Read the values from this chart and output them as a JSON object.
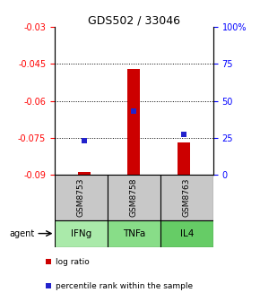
{
  "title": "GDS502 / 33046",
  "samples": [
    "GSM8753",
    "GSM8758",
    "GSM8763"
  ],
  "agents": [
    "IFNg",
    "TNFa",
    "IL4"
  ],
  "log_ratios": [
    -0.089,
    -0.047,
    -0.077
  ],
  "log_ratio_base": -0.09,
  "percentile_ranks": [
    23,
    43,
    27
  ],
  "ylim_left": [
    -0.09,
    -0.03
  ],
  "ylim_right": [
    0,
    100
  ],
  "yticks_left": [
    -0.09,
    -0.075,
    -0.06,
    -0.045,
    -0.03
  ],
  "yticks_right": [
    0,
    25,
    50,
    75,
    100
  ],
  "ytick_labels_right": [
    "0",
    "25",
    "50",
    "75",
    "100%"
  ],
  "bar_color": "#cc0000",
  "dot_color": "#2222cc",
  "sample_bg": "#c8c8c8",
  "agent_bg_light": "#aaeaaa",
  "agent_bg_mid": "#88dd88",
  "agent_bg_dark": "#66cc66",
  "legend_bar_label": "log ratio",
  "legend_dot_label": "percentile rank within the sample",
  "bar_width": 0.25
}
